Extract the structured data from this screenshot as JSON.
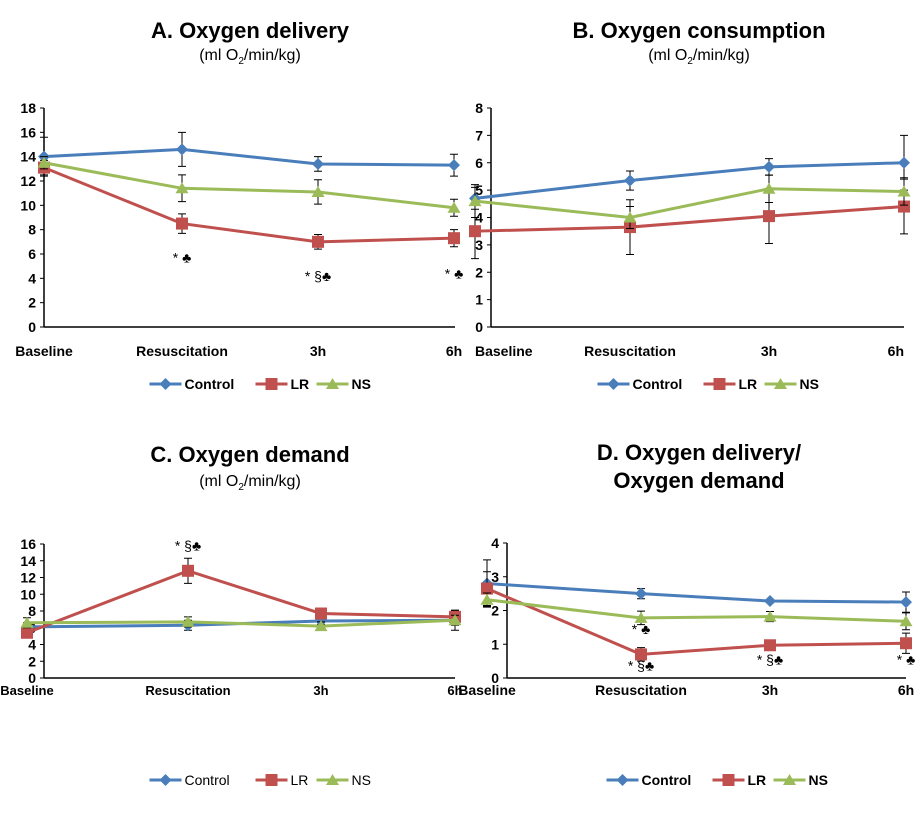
{
  "chart_data": [
    {
      "id": "A",
      "type": "line",
      "title": "A. Oxygen delivery",
      "subtitle_parts": [
        "(ml O",
        "2",
        "/min/kg)"
      ],
      "categories": [
        "Baseline",
        "Resuscitation",
        "3h",
        "6h"
      ],
      "ylim": [
        0,
        18
      ],
      "yticks": [
        0,
        2,
        4,
        6,
        8,
        10,
        12,
        14,
        16,
        18
      ],
      "series": [
        {
          "name": "Control",
          "color": "#4A7EBB",
          "marker": "diamond",
          "values": [
            14.0,
            14.6,
            13.4,
            13.3
          ],
          "errors": [
            1.6,
            1.4,
            0.6,
            0.9
          ]
        },
        {
          "name": "LR",
          "color": "#C0504D",
          "marker": "square",
          "values": [
            13.1,
            8.5,
            7.0,
            7.3
          ],
          "errors": [
            0.6,
            0.8,
            0.6,
            0.7
          ]
        },
        {
          "name": "NS",
          "color": "#9BBB59",
          "marker": "triangle",
          "values": [
            13.5,
            11.4,
            11.1,
            9.8
          ],
          "errors": [
            0.5,
            1.1,
            1.0,
            0.7
          ]
        }
      ],
      "annotations": [
        {
          "category": "Resuscitation",
          "y": 5.3,
          "text": "* ♣"
        },
        {
          "category": "3h",
          "y": 3.8,
          "text": "* §♣"
        },
        {
          "category": "6h",
          "y": 4.0,
          "text": "* ♣"
        }
      ],
      "legend_position": "bottom",
      "grid": false
    },
    {
      "id": "B",
      "type": "line",
      "title": "B. Oxygen consumption",
      "subtitle_parts": [
        "(ml O",
        "2",
        "/min/kg)"
      ],
      "categories": [
        "Baseline",
        "Resuscitation",
        "3h",
        "6h"
      ],
      "ylim": [
        0,
        8
      ],
      "yticks": [
        0,
        1,
        2,
        3,
        4,
        5,
        6,
        7,
        8
      ],
      "series": [
        {
          "name": "Control",
          "color": "#4A7EBB",
          "marker": "diamond",
          "values": [
            4.7,
            5.35,
            5.85,
            6.0
          ],
          "errors": [
            0.4,
            0.35,
            0.3,
            1.0
          ]
        },
        {
          "name": "LR",
          "color": "#C0504D",
          "marker": "square",
          "values": [
            3.5,
            3.65,
            4.05,
            4.4
          ],
          "errors": [
            1.0,
            1.0,
            1.0,
            1.0
          ]
        },
        {
          "name": "NS",
          "color": "#9BBB59",
          "marker": "triangle",
          "values": [
            4.6,
            4.0,
            5.05,
            4.95
          ],
          "errors": [
            0.6,
            0.4,
            0.5,
            0.5
          ]
        }
      ],
      "annotations": [],
      "legend_position": "bottom",
      "grid": false
    },
    {
      "id": "C",
      "type": "line",
      "title": "C. Oxygen demand",
      "subtitle_parts": [
        "(ml O",
        "2",
        "/min/kg)"
      ],
      "categories": [
        "Baseline",
        "Resuscitation",
        "3h",
        "6h"
      ],
      "ylim": [
        0,
        16
      ],
      "yticks": [
        0,
        2,
        4,
        6,
        8,
        10,
        12,
        14,
        16
      ],
      "series": [
        {
          "name": "Control",
          "color": "#4A7EBB",
          "marker": "diamond",
          "values": [
            6.1,
            6.3,
            6.8,
            6.9
          ],
          "errors": [
            0.5,
            0.6,
            0.4,
            1.2
          ]
        },
        {
          "name": "LR",
          "color": "#C0504D",
          "marker": "square",
          "values": [
            5.4,
            12.8,
            7.7,
            7.3
          ],
          "errors": [
            0.6,
            1.5,
            0.6,
            0.7
          ]
        },
        {
          "name": "NS",
          "color": "#9BBB59",
          "marker": "triangle",
          "values": [
            6.6,
            6.7,
            6.2,
            6.9
          ],
          "errors": [
            0.6,
            0.6,
            0.5,
            0.6
          ]
        }
      ],
      "annotations": [
        {
          "category": "Resuscitation",
          "y": 15.2,
          "text": "* §♣"
        }
      ],
      "legend_position": "bottom",
      "grid": false,
      "light_text": true
    },
    {
      "id": "D",
      "type": "line",
      "title_lines": [
        "D. Oxygen delivery/",
        "Oxygen demand"
      ],
      "categories": [
        "Baseline",
        "Resuscitation",
        "3h",
        "6h"
      ],
      "ylim": [
        0,
        4
      ],
      "yticks": [
        0,
        1,
        2,
        3,
        4
      ],
      "series": [
        {
          "name": "Control",
          "color": "#4A7EBB",
          "marker": "diamond",
          "values": [
            2.8,
            2.5,
            2.28,
            2.25
          ],
          "errors": [
            0.7,
            0.15,
            0.05,
            0.3
          ]
        },
        {
          "name": "LR",
          "color": "#C0504D",
          "marker": "square",
          "values": [
            2.65,
            0.7,
            0.97,
            1.03
          ],
          "errors": [
            0.5,
            0.2,
            0.12,
            0.3
          ]
        },
        {
          "name": "NS",
          "color": "#9BBB59",
          "marker": "triangle",
          "values": [
            2.32,
            1.78,
            1.82,
            1.68
          ],
          "errors": [
            0.2,
            0.2,
            0.15,
            0.25
          ]
        }
      ],
      "annotations": [
        {
          "category": "Resuscitation",
          "y": 1.3,
          "text": "* ♣"
        },
        {
          "category": "Resuscitation",
          "y": 0.22,
          "text": "* §♣"
        },
        {
          "category": "3h",
          "y": 0.4,
          "text": "* §♣"
        },
        {
          "category": "6h",
          "y": 0.4,
          "text": "* ♣"
        }
      ],
      "legend_position": "bottom",
      "grid": false
    }
  ]
}
